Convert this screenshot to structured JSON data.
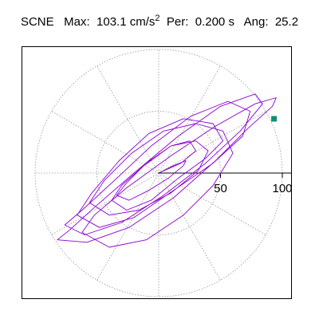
{
  "title": {
    "station": "SCNE",
    "max_label": "Max:",
    "max_value": "103.1",
    "max_unit": "cm/s",
    "max_unit_exp": "2",
    "per_label": "Per:",
    "per_value": "0.200 s",
    "ang_label": "Ang:",
    "ang_value": "25.2"
  },
  "colors": {
    "trace": "#8b00d6",
    "marker": "#109070",
    "grid": "#7f7f7f",
    "axis": "#000000",
    "background": "#ffffff"
  },
  "chart_data": {
    "type": "scatter",
    "description_of_axes": "polar acceleration orbit; radial scale in cm/s^2",
    "r_max": 100,
    "rings": [
      50,
      100
    ],
    "spoke_step_deg": 30,
    "tick_labels": [
      "50",
      "100"
    ],
    "peak": {
      "value": 103.1,
      "angle_deg": 25.2
    },
    "series": [
      {
        "x": [
          0,
          18,
          30,
          25,
          10,
          -12,
          -30,
          -38,
          -26,
          -6,
          16,
          38,
          52,
          44,
          20,
          -8,
          -32,
          -54,
          -66,
          -48,
          -20,
          12,
          44,
          68,
          74,
          56,
          26,
          -6,
          -38,
          -62,
          -76,
          -60,
          -30,
          4,
          38,
          66,
          84,
          78,
          50,
          16,
          -20,
          -50,
          -72,
          -82,
          -58,
          -24,
          12,
          46,
          72,
          92,
          95,
          78,
          46,
          10,
          -26,
          -52,
          -62,
          -40,
          -10,
          20,
          44,
          60,
          52,
          30,
          4,
          -22,
          -44,
          -56,
          -40,
          -16,
          10,
          32,
          40,
          30,
          10,
          -10,
          -26,
          -34,
          -24,
          -8,
          8,
          20,
          22,
          12,
          0
        ],
        "y": [
          0,
          8,
          18,
          26,
          22,
          6,
          -10,
          -22,
          -30,
          -22,
          -4,
          12,
          26,
          40,
          44,
          32,
          10,
          -16,
          -34,
          -44,
          -36,
          -14,
          8,
          30,
          50,
          58,
          46,
          22,
          -8,
          -30,
          -42,
          -50,
          -40,
          -18,
          8,
          34,
          56,
          64,
          54,
          30,
          0,
          -26,
          -46,
          -54,
          -56,
          -44,
          -20,
          10,
          36,
          54,
          61,
          56,
          38,
          14,
          -12,
          -34,
          -48,
          -60,
          -54,
          -34,
          -10,
          16,
          34,
          40,
          34,
          16,
          -6,
          -24,
          -34,
          -30,
          -16,
          2,
          18,
          26,
          22,
          8,
          -8,
          -18,
          -22,
          -14,
          -4,
          6,
          10,
          6,
          0
        ]
      }
    ],
    "grid": true
  }
}
